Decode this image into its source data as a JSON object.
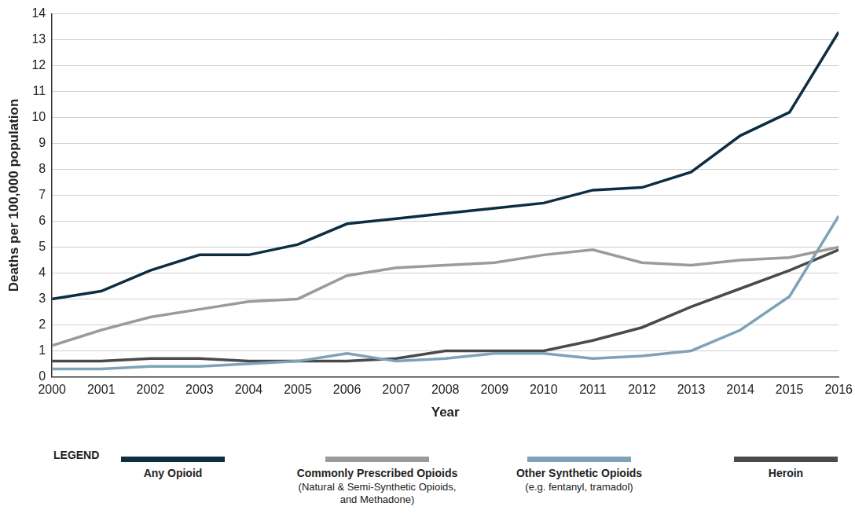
{
  "chart_data": {
    "type": "line",
    "x_label": "Year",
    "y_label": "Deaths per 100,000 population",
    "legend_title": "LEGEND",
    "legend": "bottom",
    "grid": true,
    "x": [
      2000,
      2001,
      2002,
      2003,
      2004,
      2005,
      2006,
      2007,
      2008,
      2009,
      2010,
      2011,
      2012,
      2013,
      2014,
      2015,
      2016
    ],
    "xlim": [
      2000,
      2016
    ],
    "xticks": [
      2000,
      2001,
      2002,
      2003,
      2004,
      2005,
      2006,
      2007,
      2008,
      2009,
      2010,
      2011,
      2012,
      2013,
      2014,
      2015,
      2016
    ],
    "ylim": [
      0,
      14
    ],
    "yticks": [
      0,
      1,
      2,
      3,
      4,
      5,
      6,
      7,
      8,
      9,
      10,
      11,
      12,
      13,
      14
    ],
    "series": [
      {
        "name": "Any Opioid",
        "color": "#0d2d42",
        "values": [
          3.0,
          3.3,
          4.1,
          4.7,
          4.7,
          5.1,
          5.9,
          6.1,
          6.3,
          6.5,
          6.7,
          7.2,
          7.3,
          7.9,
          9.3,
          10.2,
          13.3
        ]
      },
      {
        "name": "Commonly Prescribed Opioids (Natural & Semi-Synthetic Opioids, and Methadone)",
        "color": "#9b9b9b",
        "values": [
          1.2,
          1.8,
          2.3,
          2.6,
          2.9,
          3.0,
          3.9,
          4.2,
          4.3,
          4.4,
          4.7,
          4.9,
          4.4,
          4.3,
          4.5,
          4.6,
          5.0
        ]
      },
      {
        "name": "Other Synthetic Opioids (e.g. fentanyl, tramadol)",
        "color": "#7ea3b8",
        "values": [
          0.3,
          0.3,
          0.4,
          0.4,
          0.5,
          0.6,
          0.9,
          0.6,
          0.7,
          0.9,
          0.9,
          0.7,
          0.8,
          1.0,
          1.8,
          3.1,
          6.2
        ]
      },
      {
        "name": "Heroin",
        "color": "#4a4a4a",
        "values": [
          0.6,
          0.6,
          0.7,
          0.7,
          0.6,
          0.6,
          0.6,
          0.7,
          1.0,
          1.0,
          1.0,
          1.4,
          1.9,
          2.7,
          3.4,
          4.1,
          4.9
        ]
      }
    ]
  }
}
